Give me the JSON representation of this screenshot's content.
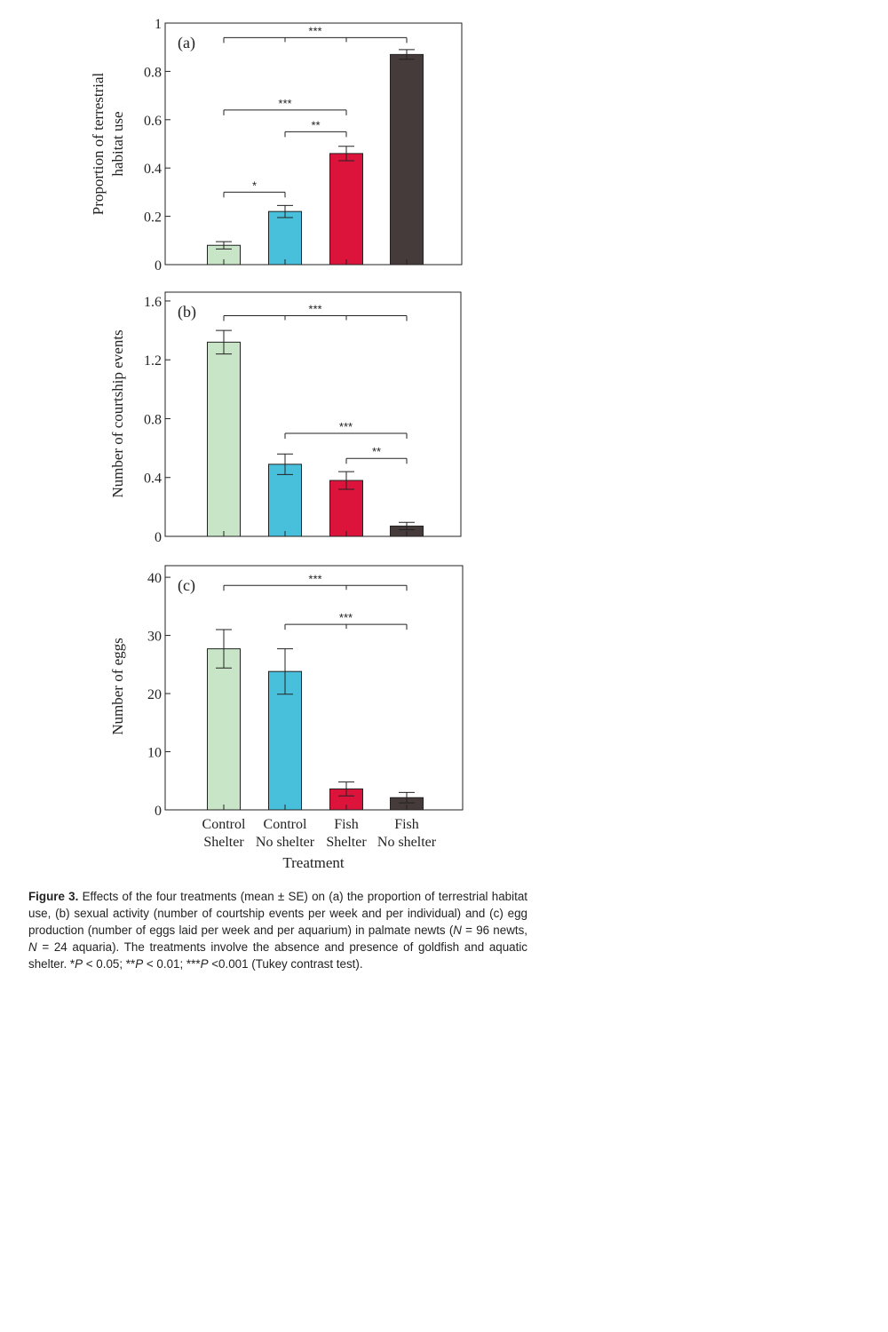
{
  "figure": {
    "x_tick_lines": [
      [
        "Control",
        "Shelter"
      ],
      [
        "Control",
        "No shelter"
      ],
      [
        "Fish",
        "Shelter"
      ],
      [
        "Fish",
        "No shelter"
      ]
    ],
    "xlabel": "Treatment",
    "caption": {
      "label": "Figure 3.",
      "t1": " Effects of the four treatments (mean ± SE) on (a) the proportion of terrestrial habitat use, (b) sexual activity (number of courtship events per week and per individual) and (c) egg production (number of eggs laid per week and per aquarium) in palmate newts (",
      "n1": "N",
      "t2": " = 96 newts, ",
      "n2": "N",
      "t3": " = 24 aquaria). The treatments involve the absence and presence of goldfish and aquatic shelter. *",
      "p1": "P",
      "t4": " < 0.05; **",
      "p2": "P",
      "t5": " < 0.01; ***",
      "p3": "P",
      "t6": " <0.001 (Tukey contrast test)."
    }
  },
  "colors": {
    "control_shelter": "#c8e5c8",
    "control_no_shelter": "#48c0dc",
    "fish_shelter": "#dc143c",
    "fish_no_shelter": "#463b3b"
  },
  "chart_data": [
    {
      "type": "bar",
      "panel": "(a)",
      "ylabel": "Proportion of terrestrial habitat use",
      "categories": [
        "Control Shelter",
        "Control No shelter",
        "Fish Shelter",
        "Fish No shelter"
      ],
      "values": [
        0.08,
        0.22,
        0.46,
        0.87
      ],
      "errors": [
        0.015,
        0.025,
        0.03,
        0.02
      ],
      "ylim": [
        0,
        1
      ],
      "yticks": [
        0,
        0.2,
        0.4,
        0.6,
        0.8,
        1
      ],
      "ytick_labels": [
        "0",
        "0.2",
        "0.4",
        "0.6",
        "0.8",
        "1"
      ],
      "comparisons": [
        {
          "from": 0,
          "to": 3,
          "mid": [
            1,
            2
          ],
          "y": 0.94,
          "label": "***"
        },
        {
          "from": 0,
          "to": 2,
          "mid": [],
          "y": 0.64,
          "label": "***"
        },
        {
          "from": 1,
          "to": 2,
          "mid": [],
          "y": 0.55,
          "label": "**"
        },
        {
          "from": 0,
          "to": 1,
          "mid": [],
          "y": 0.3,
          "label": "*"
        }
      ]
    },
    {
      "type": "bar",
      "panel": "(b)",
      "ylabel": "Number of courtship events",
      "categories": [
        "Control Shelter",
        "Control No shelter",
        "Fish Shelter",
        "Fish No shelter"
      ],
      "values": [
        1.32,
        0.49,
        0.38,
        0.07
      ],
      "errors": [
        0.08,
        0.07,
        0.06,
        0.025
      ],
      "ylim": [
        0,
        1.66
      ],
      "yticks": [
        0,
        0.4,
        0.8,
        1.2,
        1.6
      ],
      "ytick_labels": [
        "0",
        "0.4",
        "0.8",
        "1.2",
        "1.6"
      ],
      "comparisons": [
        {
          "from": 0,
          "to": 3,
          "mid": [
            1,
            2
          ],
          "y": 1.5,
          "label": "***"
        },
        {
          "from": 1,
          "to": 3,
          "mid": [],
          "y": 0.7,
          "label": "***"
        },
        {
          "from": 2,
          "to": 3,
          "mid": [],
          "y": 0.53,
          "label": "**"
        }
      ]
    },
    {
      "type": "bar",
      "panel": "(c)",
      "ylabel": "Number of eggs",
      "categories": [
        "Control Shelter",
        "Control No shelter",
        "Fish Shelter",
        "Fish No shelter"
      ],
      "values": [
        27.7,
        23.8,
        3.6,
        2.1
      ],
      "errors": [
        3.3,
        3.9,
        1.2,
        0.9
      ],
      "ylim": [
        0,
        42
      ],
      "yticks": [
        0,
        10,
        20,
        30,
        40
      ],
      "ytick_labels": [
        "0",
        "10",
        "20",
        "30",
        "40"
      ],
      "comparisons": [
        {
          "from": 0,
          "to": 3,
          "mid": [
            2
          ],
          "y": 38.6,
          "label": "***"
        },
        {
          "from": 1,
          "to": 3,
          "mid": [
            2
          ],
          "y": 31.9,
          "label": "***"
        }
      ]
    }
  ]
}
